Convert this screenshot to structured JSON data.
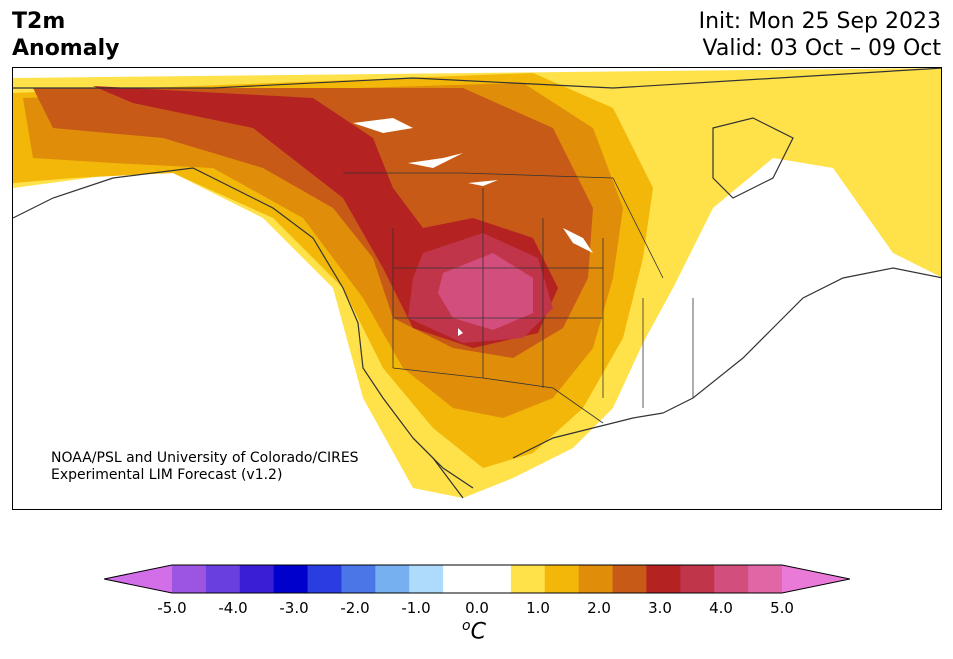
{
  "header": {
    "title_line1": "T2m",
    "title_line2": "Anomaly",
    "init": "Init: Mon 25 Sep 2023",
    "valid": "Valid: 03 Oct – 09 Oct"
  },
  "credit": {
    "line1": "NOAA/PSL and University of Colorado/CIRES",
    "line2": "Experimental LIM Forecast (v1.2)"
  },
  "colorbar": {
    "unit_base": "C",
    "unit_sup": "o",
    "min": -5.0,
    "max": 5.0,
    "step": 0.5,
    "tick_labels": [
      "-5.0",
      "-4.0",
      "-3.0",
      "-2.0",
      "-1.0",
      "0.0",
      "1.0",
      "2.0",
      "3.0",
      "4.0",
      "5.0"
    ],
    "colors": [
      "#d16ee8",
      "#9b55e0",
      "#6a3fdf",
      "#3a1ed6",
      "#0000cd",
      "#2a3de0",
      "#4a76e8",
      "#76b0f0",
      "#aedbfb",
      "#ffffff",
      "#ffffff",
      "#ffe14a",
      "#f2b708",
      "#e08d0a",
      "#c85a17",
      "#b52222",
      "#c0354a",
      "#d24e7c",
      "#e066a6",
      "#ea7ad8"
    ]
  },
  "map": {
    "land_color": "#ffffff",
    "water_color": "#ffffff",
    "border_color": "#333333"
  }
}
